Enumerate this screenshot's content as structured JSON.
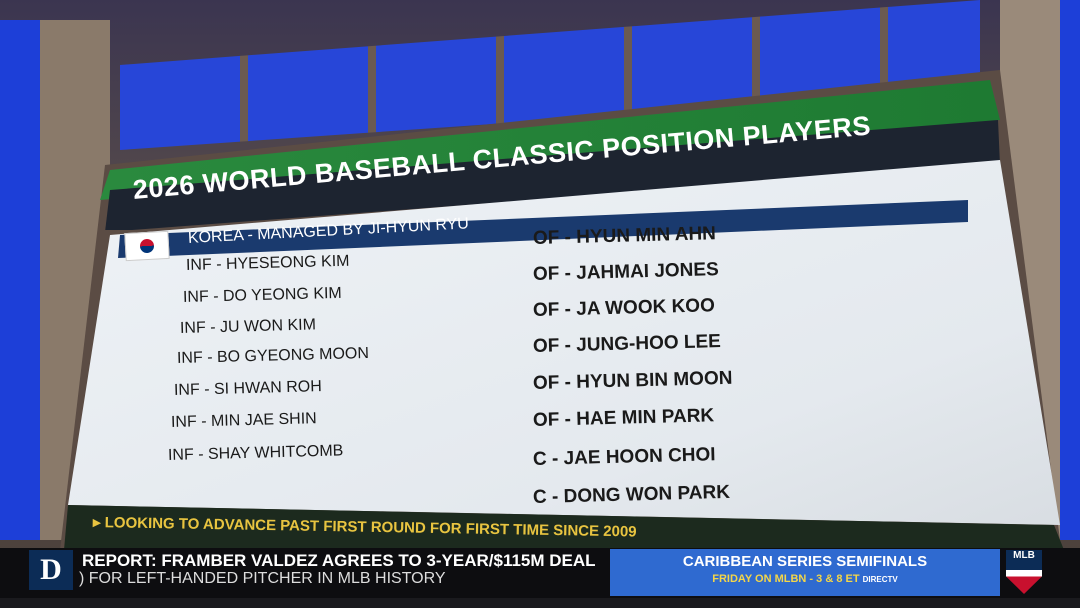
{
  "board": {
    "title": "2026 WORLD BASEBALL CLASSIC POSITION PLAYERS",
    "team": "KOREA - MANAGED BY JI-HYUN RYU",
    "flag_icon": "south-korea-flag",
    "left_players": [
      "INF - HYESEONG KIM",
      "INF - DO YEONG KIM",
      "INF - JU WON KIM",
      "INF - BO GYEONG MOON",
      "INF - SI HWAN ROH",
      "INF - MIN JAE SHIN",
      "INF - SHAY WHITCOMB"
    ],
    "right_players": [
      "OF - HYUN MIN AHN",
      "OF - JAHMAI JONES",
      "OF - JA WOOK KOO",
      "OF - JUNG-HOO LEE",
      "OF - HYUN BIN MOON",
      "OF - HAE MIN PARK",
      "C - JAE HOON CHOI",
      "C - DONG WON PARK"
    ],
    "footer": "LOOKING TO ADVANCE PAST FIRST ROUND FOR FIRST TIME SINCE 2009"
  },
  "ticker": {
    "team_logo": "D",
    "headline": "REPORT: FRAMBER VALDEZ AGREES TO 3-YEAR/$115M DEAL",
    "subline": ") FOR LEFT-HANDED PITCHER IN MLB HISTORY",
    "promo_title": "CARIBBEAN SERIES SEMIFINALS",
    "promo_sub": "FRIDAY ON MLBN - 3 & 8 ET",
    "promo_sponsor": "DIRECTV",
    "network_logo": "MLB",
    "colors": {
      "promo": "#2f6ad0",
      "footer_text": "#e8c440",
      "title_bar": "#1d2430"
    }
  }
}
